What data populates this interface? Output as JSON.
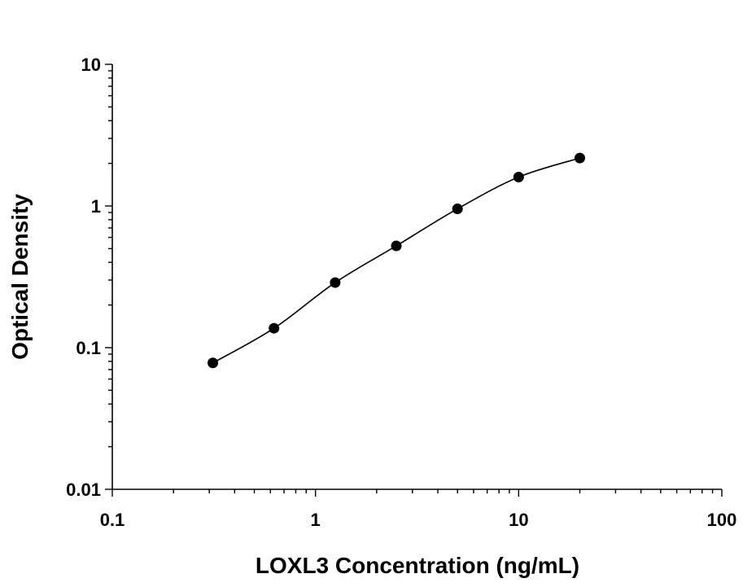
{
  "chart_data": {
    "type": "scatter",
    "title": "",
    "xlabel": "LOXL3 Concentration (ng/mL)",
    "ylabel": "Optical Density",
    "xscale": "log",
    "yscale": "log",
    "xlim": [
      0.1,
      100
    ],
    "ylim": [
      0.01,
      10
    ],
    "x_ticks": [
      0.1,
      1,
      10,
      100
    ],
    "x_tick_labels": [
      "0.1",
      "1",
      "10",
      "100"
    ],
    "y_ticks": [
      0.01,
      0.1,
      1,
      10
    ],
    "y_tick_labels": [
      "0.01",
      "0.1",
      "1",
      "10"
    ],
    "grid": false,
    "legend": "none",
    "series": [
      {
        "x": [
          0.3125,
          0.625,
          1.25,
          2.5,
          5,
          10,
          20
        ],
        "y": [
          0.078,
          0.137,
          0.288,
          0.523,
          0.955,
          1.6,
          2.18
        ],
        "marker": "filled-circle",
        "fit_line": true
      }
    ],
    "colors": {
      "marker": "#000000",
      "line": "#000000",
      "axis": "#000000"
    }
  }
}
